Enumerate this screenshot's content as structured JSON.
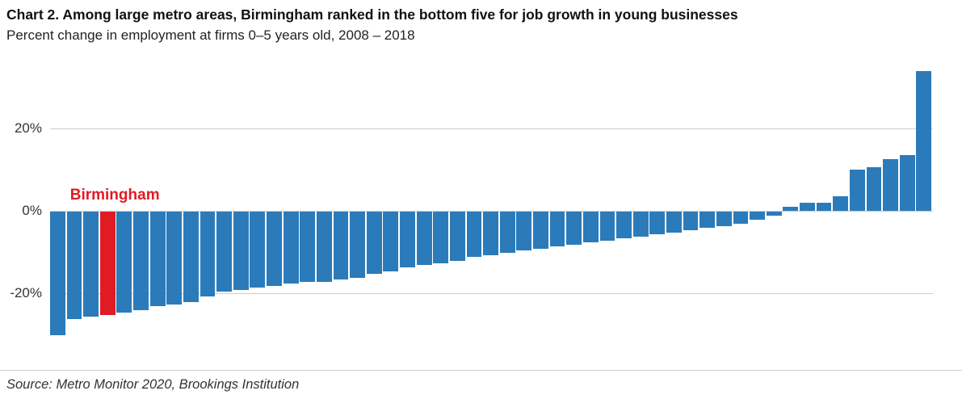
{
  "header": {
    "title": "Chart 2. Among large metro areas, Birmingham ranked in the bottom five for job growth in young businesses",
    "subtitle": "Percent change in employment at firms 0–5 years old, 2008 – 2018"
  },
  "footer": {
    "source": "Source: Metro Monitor 2020, Brookings Institution"
  },
  "chart_data": {
    "type": "bar",
    "title": "Chart 2. Among large metro areas, Birmingham ranked in the bottom five for job growth in young businesses",
    "subtitle": "Percent change in employment at firms 0–5 years old, 2008 – 2018",
    "ylabel": "Percent change in employment",
    "ytick_labels": [
      "20%",
      "0%",
      "-20%"
    ],
    "ytick_values": [
      20,
      0,
      -20
    ],
    "ylim": [
      -32,
      36
    ],
    "grid": "horizontal",
    "legend": "none",
    "bar_color": "#2b7bba",
    "highlight_color": "#e01b24",
    "grid_color": "#cccccc",
    "highlight_index": 3,
    "values": [
      -30,
      -26,
      -25.5,
      -25,
      -24.5,
      -24,
      -23,
      -22.5,
      -22,
      -20.5,
      -19.5,
      -19,
      -18.5,
      -18,
      -17.5,
      -17,
      -17,
      -16.5,
      -16,
      -15,
      -14.5,
      -13.5,
      -13,
      -12.5,
      -12,
      -11,
      -10.5,
      -10,
      -9.5,
      -9,
      -8.5,
      -8,
      -7.5,
      -7,
      -6.5,
      -6,
      -5.5,
      -5,
      -4.5,
      -4,
      -3.5,
      -3,
      -2,
      -1,
      1,
      2,
      2,
      3.5,
      10,
      10.5,
      12.5,
      13.5,
      34
    ],
    "annotations": [
      {
        "text": "Birmingham",
        "bar_index": 3,
        "color": "#e01b24"
      }
    ]
  }
}
